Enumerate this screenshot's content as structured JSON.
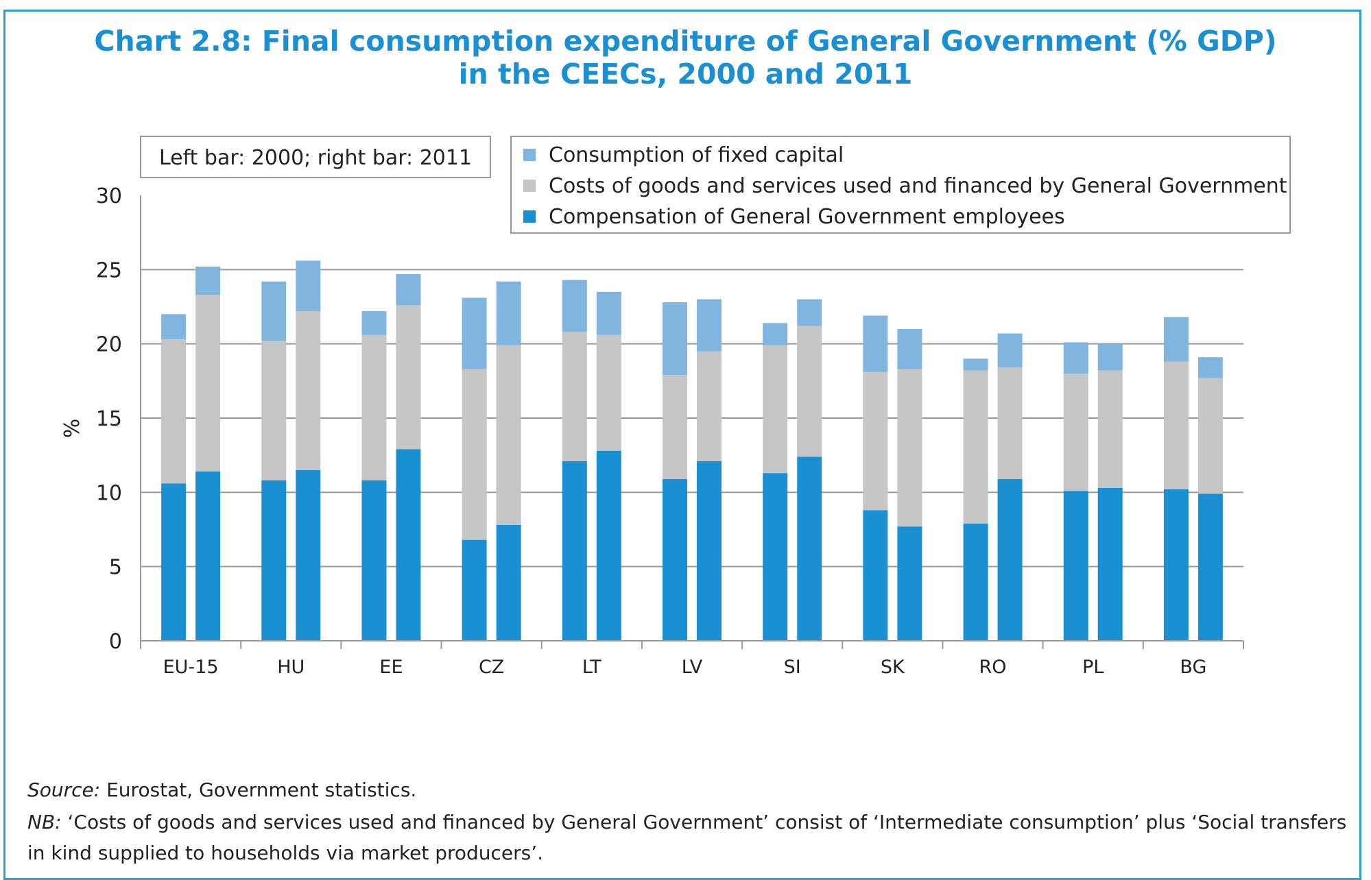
{
  "title_line1": "Chart 2.8: Final consumption expenditure of General Government (% GDP)",
  "title_line2": "in the CEECs, 2000 and 2011",
  "note_box": "Left bar: 2000; right bar: 2011",
  "footer": {
    "source_label": "Source:",
    "source_text": " Eurostat, Government statistics.",
    "nb_label": "NB:",
    "nb_text": " ‘Costs of goods and services used and financed by General Government’ consist of ‘Intermediate consumption’ plus ‘Social transfers in kind supplied to households via market producers’."
  },
  "colors": {
    "title": "#1a8fd1",
    "compensation": "#1a8fd1",
    "costs": "#c6c6c6",
    "capital": "#80b5e0",
    "grid": "#9a9a9a",
    "frame": "#2a9fd8"
  },
  "chart_data": {
    "type": "bar",
    "stacked": true,
    "ylabel": "%",
    "ylim": [
      0,
      30
    ],
    "yticks": [
      0,
      5,
      10,
      15,
      20,
      25,
      30
    ],
    "grid": true,
    "legend_position": "top-right",
    "categories": [
      "EU-15",
      "HU",
      "EE",
      "CZ",
      "LT",
      "LV",
      "SI",
      "SK",
      "RO",
      "PL",
      "BG"
    ],
    "bar_years": [
      "2000",
      "2011"
    ],
    "series": [
      {
        "name": "Compensation of General Government employees",
        "values_2000": [
          10.6,
          10.8,
          10.8,
          6.8,
          12.1,
          10.9,
          11.3,
          8.8,
          7.9,
          10.1,
          10.2
        ],
        "values_2011": [
          11.4,
          11.5,
          12.9,
          7.8,
          12.8,
          12.1,
          12.4,
          7.7,
          10.9,
          10.3,
          9.9
        ]
      },
      {
        "name": "Costs of goods and services used and financed by General Government",
        "values_2000": [
          9.7,
          9.4,
          9.8,
          11.5,
          8.7,
          7.0,
          8.6,
          9.3,
          10.3,
          7.9,
          8.6
        ],
        "values_2011": [
          11.9,
          10.7,
          9.7,
          12.1,
          7.8,
          7.4,
          8.8,
          10.6,
          7.5,
          7.9,
          7.8
        ]
      },
      {
        "name": "Consumption of fixed capital",
        "values_2000": [
          1.7,
          4.0,
          1.6,
          4.8,
          3.5,
          4.9,
          1.5,
          3.8,
          0.8,
          2.1,
          3.0
        ],
        "values_2011": [
          1.9,
          3.4,
          2.1,
          4.3,
          2.9,
          3.5,
          1.8,
          2.7,
          2.3,
          1.8,
          1.4
        ]
      }
    ]
  }
}
